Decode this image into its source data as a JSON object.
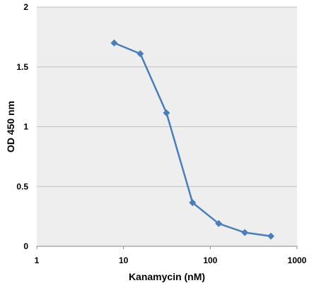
{
  "chart_data": {
    "type": "line",
    "title": "",
    "xlabel": "Kanamycin (nM)",
    "ylabel": "OD 450 nm",
    "x_scale": "log",
    "xlim": [
      1,
      1000
    ],
    "ylim": [
      0,
      2
    ],
    "x_ticks": [
      1,
      10,
      100,
      1000
    ],
    "x_tick_labels": [
      "1",
      "10",
      "100",
      "1000"
    ],
    "y_ticks": [
      0,
      0.5,
      1,
      1.5,
      2
    ],
    "y_tick_labels": [
      "0",
      "0.5",
      "1",
      "1.5",
      "2"
    ],
    "grid": "horizontal",
    "legend": "none",
    "colors": {
      "series": "#4a7ebb",
      "plot_background": "#eeeeee",
      "gridline": "#c0c0c0"
    },
    "marker": "diamond",
    "series": [
      {
        "x": [
          7.8,
          15.6,
          31.25,
          62.5,
          125,
          250,
          500
        ],
        "y": [
          1.7,
          1.61,
          1.115,
          0.365,
          0.19,
          0.115,
          0.085
        ]
      }
    ]
  }
}
